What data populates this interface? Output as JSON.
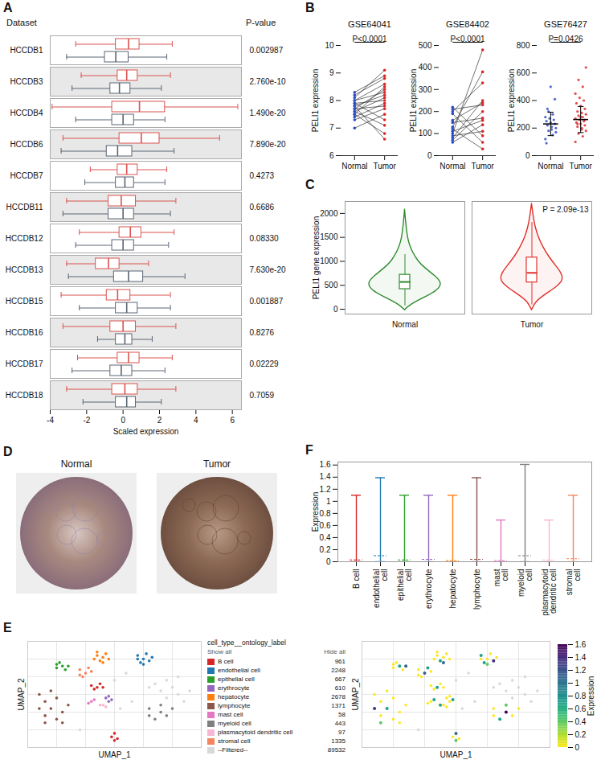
{
  "chart_data": [
    {
      "panel_label": "A",
      "type": "boxplot",
      "orientation": "horizontal",
      "column_titles": [
        "Dataset",
        "P-value"
      ],
      "categories": [
        "HCCDB1",
        "HCCDB3",
        "HCCDB4",
        "HCCDB6",
        "HCCDB7",
        "HCCDB11",
        "HCCDB12",
        "HCCDB13",
        "HCCDB15",
        "HCCDB16",
        "HCCDB17",
        "HCCDB18"
      ],
      "p_values": [
        "0.002987",
        "2.760e-10",
        "1.490e-20",
        "7.890e-20",
        "0.4273",
        "0.6686",
        "0.08330",
        "7.630e-20",
        "0.001887",
        "0.8276",
        "0.02229",
        "0.7059"
      ],
      "series": [
        {
          "color": "#d9534f",
          "values": [
            [
              -2.6,
              -0.4,
              0.3,
              0.9,
              2.7
            ],
            [
              -2.3,
              -0.3,
              0.2,
              0.8,
              2.6
            ],
            [
              -3.9,
              -0.6,
              0.9,
              2.3,
              6.3
            ],
            [
              -3.3,
              -0.2,
              1.0,
              2.0,
              5.3
            ],
            [
              -1.8,
              -0.3,
              0.2,
              0.8,
              2.4
            ],
            [
              -3.1,
              -0.8,
              -0.1,
              0.7,
              2.9
            ],
            [
              -2.4,
              -0.2,
              0.4,
              1.0,
              2.8
            ],
            [
              -3.1,
              -1.5,
              -0.8,
              -0.2,
              1.4
            ],
            [
              -3.4,
              -0.9,
              -0.3,
              0.4,
              2.6
            ],
            [
              -3.3,
              -0.7,
              0.0,
              0.7,
              2.9
            ],
            [
              -2.5,
              -0.3,
              0.3,
              0.9,
              2.7
            ],
            [
              -3.1,
              -0.6,
              0.1,
              0.8,
              2.9
            ]
          ]
        },
        {
          "color": "#5a6675",
          "values": [
            [
              -3.1,
              -1.0,
              -0.4,
              0.3,
              2.4
            ],
            [
              -2.8,
              -0.7,
              -0.2,
              0.4,
              2.1
            ],
            [
              -2.6,
              -0.6,
              0.0,
              0.6,
              2.3
            ],
            [
              -3.4,
              -0.9,
              -0.3,
              0.5,
              2.8
            ],
            [
              -2.1,
              -0.4,
              0.1,
              0.6,
              2.3
            ],
            [
              -3.3,
              -0.8,
              0.0,
              0.6,
              2.6
            ],
            [
              -2.6,
              -0.6,
              0.0,
              0.6,
              2.5
            ],
            [
              -3.0,
              -0.5,
              0.3,
              1.1,
              3.4
            ],
            [
              -2.4,
              -0.4,
              0.2,
              0.8,
              2.6
            ],
            [
              -1.4,
              -0.4,
              0.1,
              0.5,
              1.6
            ],
            [
              -2.8,
              -0.7,
              -0.1,
              0.5,
              2.3
            ],
            [
              -2.2,
              -0.4,
              0.2,
              0.7,
              2.1
            ]
          ]
        }
      ],
      "xlabel": "Scaled expression",
      "xlim": [
        -4,
        6.5
      ],
      "xticks": [
        -4,
        -2,
        0,
        2,
        4,
        6
      ]
    },
    {
      "panel_label": "B",
      "type": "paired",
      "title": "GSE64041",
      "categories": [
        "Normal",
        "Tumor"
      ],
      "colors": [
        "#2b4bc4",
        "#d62728"
      ],
      "ylabel": "PELI1 expression",
      "annotation": "P<0.0001",
      "ylim": [
        6,
        10
      ],
      "yticks": [
        6,
        7,
        8,
        9,
        10
      ],
      "pairs": [
        [
          7.8,
          8.2
        ],
        [
          7.6,
          7.1
        ],
        [
          8.0,
          8.6
        ],
        [
          7.4,
          7.9
        ],
        [
          7.9,
          7.3
        ],
        [
          7.7,
          8.4
        ],
        [
          8.1,
          9.1
        ],
        [
          7.5,
          6.8
        ],
        [
          7.3,
          7.7
        ],
        [
          7.9,
          8.0
        ],
        [
          8.2,
          8.8
        ],
        [
          7.6,
          8.1
        ],
        [
          7.0,
          7.5
        ],
        [
          7.8,
          6.6
        ],
        [
          8.0,
          8.3
        ],
        [
          7.5,
          8.5
        ],
        [
          7.7,
          7.8
        ],
        [
          8.3,
          8.9
        ]
      ]
    },
    {
      "type": "paired",
      "title": "GSE84402",
      "categories": [
        "Normal",
        "Tumor"
      ],
      "colors": [
        "#2b4bc4",
        "#d62728"
      ],
      "ylabel": "PELI1 expression",
      "annotation": "P<0.0001",
      "ylim": [
        0,
        500
      ],
      "yticks": [
        0,
        100,
        200,
        300,
        400,
        500
      ],
      "pairs": [
        [
          100,
          480
        ],
        [
          210,
          230
        ],
        [
          60,
          140
        ],
        [
          190,
          60
        ],
        [
          130,
          380
        ],
        [
          80,
          250
        ],
        [
          220,
          90
        ],
        [
          150,
          170
        ],
        [
          90,
          110
        ],
        [
          160,
          240
        ],
        [
          120,
          30
        ],
        [
          70,
          200
        ],
        [
          200,
          330
        ],
        [
          110,
          160
        ]
      ]
    },
    {
      "type": "dot",
      "title": "GSE76427",
      "categories": [
        "Normal",
        "Tumor"
      ],
      "ylabel": "PELI1 expression",
      "annotation": "P=0.0426",
      "ylim": [
        0,
        800
      ],
      "yticks": [
        0,
        200,
        400,
        600,
        800
      ],
      "groups": [
        {
          "color": "#3050c8",
          "mean": 230,
          "sd": 85,
          "values": [
            120,
            150,
            180,
            200,
            210,
            220,
            230,
            240,
            250,
            260,
            270,
            280,
            300,
            320,
            170,
            190,
            340,
            410,
            500,
            90
          ]
        },
        {
          "color": "#e03030",
          "mean": 262,
          "sd": 95,
          "values": [
            100,
            140,
            160,
            180,
            200,
            210,
            220,
            230,
            240,
            250,
            260,
            270,
            280,
            290,
            300,
            310,
            320,
            340,
            360,
            380,
            400,
            420,
            450,
            500,
            550,
            640,
            190,
            230,
            260,
            280
          ]
        }
      ]
    },
    {
      "panel_label": "C",
      "type": "violin",
      "categories": [
        "Normal",
        "Tumor"
      ],
      "colors": [
        "#2e8b2e",
        "#e0302a"
      ],
      "ylabel": "PELI1 gene expression",
      "annotation": "P = 2.09e-13",
      "ylim": [
        -100,
        2250
      ],
      "yticks": [
        0,
        500,
        1000,
        1500,
        2000
      ],
      "box": [
        [
          80,
          420,
          570,
          720,
          1150
        ],
        [
          100,
          560,
          760,
          1080,
          1820
        ]
      ],
      "violin": [
        {
          "y": [
            -20,
            100,
            250,
            400,
            550,
            700,
            850,
            1000,
            1200,
            1400,
            1600,
            1800,
            2080
          ],
          "width": [
            0,
            0.15,
            0.55,
            0.9,
            1.0,
            0.8,
            0.55,
            0.35,
            0.2,
            0.1,
            0.06,
            0.03,
            0
          ]
        },
        {
          "y": [
            -20,
            150,
            300,
            450,
            600,
            750,
            900,
            1100,
            1300,
            1500,
            1700,
            1900,
            2200
          ],
          "width": [
            0,
            0.1,
            0.35,
            0.65,
            0.85,
            0.8,
            0.65,
            0.45,
            0.3,
            0.18,
            0.1,
            0.05,
            0
          ]
        }
      ]
    },
    {
      "panel_label": "E",
      "type": "scatter",
      "xlabel": "UMAP_1",
      "ylabel": "UMAP_2",
      "xlim": [
        -15,
        15
      ],
      "ylim": [
        -15,
        15
      ],
      "xticks": [
        -10,
        -5,
        0,
        5,
        10
      ],
      "yticks": [
        -10,
        -5,
        0,
        5,
        10
      ],
      "grid": true,
      "tick_labels": false,
      "legend": "right",
      "legend_title": "cell_type__ontology_label",
      "legend_buttons": [
        "Show all",
        "Hide all"
      ],
      "series": [
        {
          "name": "B cell",
          "color": "#d62728",
          "count": 961,
          "x": [
            -4,
            -3,
            -2.5,
            -3.5,
            -2,
            -0.5,
            0,
            0.5,
            0
          ],
          "y": [
            2.5,
            2,
            3,
            1.5,
            2,
            -12,
            -11,
            -12.5,
            -13
          ],
          "expression": [
            0,
            0.7,
            0,
            0,
            0,
            0,
            1.1,
            0,
            0.4
          ]
        },
        {
          "name": "endothelial cell",
          "color": "#1f77b4",
          "count": 2248,
          "x": [
            4,
            5,
            6,
            5.5,
            4.5,
            6.5,
            5,
            4
          ],
          "y": [
            11,
            10,
            9.5,
            11.5,
            9,
            10.5,
            8.5,
            10
          ],
          "expression": [
            0.7,
            0,
            1.39,
            0,
            0.69,
            0,
            0.4,
            0
          ]
        },
        {
          "name": "epithelial cell",
          "color": "#2ca02c",
          "count": 667,
          "x": [
            -10,
            -9,
            -8.5,
            -9.5,
            -8,
            -10
          ],
          "y": [
            8.5,
            8,
            7,
            9,
            8,
            7.5
          ],
          "expression": [
            0,
            0.69,
            0,
            0,
            1.1,
            0
          ]
        },
        {
          "name": "erythrocyte",
          "color": "#9467bd",
          "count": 610,
          "x": [
            -1.5,
            -1,
            -0.5,
            -1
          ],
          "y": [
            -1,
            -0.5,
            -1.5,
            -2
          ],
          "expression": [
            0,
            0,
            0.69,
            0
          ]
        },
        {
          "name": "hepatocyte",
          "color": "#ff7f0e",
          "count": 2678,
          "x": [
            -3,
            -2,
            -2.5,
            -1.5,
            -3.5,
            -2,
            -1,
            -3
          ],
          "y": [
            11,
            10.5,
            9.5,
            11.5,
            10,
            9,
            10,
            12
          ],
          "expression": [
            0,
            0,
            0.69,
            0,
            0,
            1.1,
            0,
            0
          ]
        },
        {
          "name": "lymphocyte",
          "color": "#8c564b",
          "count": 1371,
          "x": [
            -13,
            -12,
            -11,
            -10,
            -12,
            -9,
            -13,
            -11,
            -10,
            -12,
            -8,
            -9
          ],
          "y": [
            0,
            -2,
            -4,
            -1,
            -6,
            -5,
            -4,
            1,
            -7,
            -8,
            -3,
            -8
          ],
          "expression": [
            0,
            0,
            0.69,
            0,
            0,
            0,
            1.39,
            0,
            0,
            0.4,
            0,
            0
          ]
        },
        {
          "name": "mast cell",
          "color": "#e377c2",
          "count": 58,
          "x": [
            -4,
            -3.5,
            -4.5
          ],
          "y": [
            -2,
            -1.5,
            -2.5
          ],
          "expression": [
            0,
            0.69,
            0
          ]
        },
        {
          "name": "myeloid cell",
          "color": "#7f7f7f",
          "count": 443,
          "x": [
            6,
            8,
            9,
            7,
            10,
            8,
            6
          ],
          "y": [
            -4,
            -5,
            -6,
            -7,
            -4,
            -3,
            -6
          ],
          "expression": [
            0,
            1.61,
            0,
            0.69,
            0,
            0.4,
            0
          ]
        },
        {
          "name": "plasmacytoid dendritic cell",
          "color": "#f7b6d2",
          "count": 97,
          "x": [
            -2,
            -1.5,
            -2.5
          ],
          "y": [
            -3,
            -3.5,
            -3
          ],
          "expression": [
            0,
            0,
            0.69
          ]
        },
        {
          "name": "stromal cell",
          "color": "#f4845f",
          "count": 1335,
          "x": [
            -6,
            -5,
            -4,
            -5.5,
            -4.5,
            -6
          ],
          "y": [
            7,
            6,
            6.5,
            5,
            7.5,
            5.5
          ],
          "expression": [
            0,
            1.1,
            0,
            0,
            0.69,
            0
          ]
        },
        {
          "name": "--Filtered--",
          "color": "#d9d9d9",
          "count": 89532,
          "x": [
            7,
            9,
            10,
            8,
            11,
            12,
            6,
            9,
            11,
            13,
            0,
            1,
            3,
            -6,
            2
          ],
          "y": [
            3,
            4,
            2,
            1,
            0,
            -2,
            2,
            -1,
            5,
            1,
            4,
            -4,
            -2,
            -10,
            6
          ]
        }
      ],
      "colorbar": {
        "label": "Expression",
        "range": [
          0,
          1.6
        ],
        "ticks": [
          0,
          0.2,
          0.4,
          0.6,
          0.8,
          1,
          1.2,
          1.4,
          1.6
        ]
      }
    },
    {
      "panel_label": "F",
      "type": "range",
      "categories": [
        "B cell",
        "endothelial cell",
        "epithelial cell",
        "erythrocyte",
        "hepatocyte",
        "lymphocyte",
        "mast cell",
        "myeloid cell",
        "plasmacytoid dendritic cell",
        "stromal cell"
      ],
      "colors": [
        "#d62728",
        "#1f77b4",
        "#2ca02c",
        "#9467bd",
        "#ff7f0e",
        "#8c564b",
        "#e377c2",
        "#7f7f7f",
        "#f7b6d2",
        "#f4845f"
      ],
      "min": [
        0,
        0,
        0,
        0,
        0,
        0,
        0,
        0,
        0,
        0
      ],
      "max": [
        1.1,
        1.39,
        1.1,
        1.1,
        1.1,
        1.39,
        0.69,
        1.61,
        0.69,
        1.1
      ],
      "mean": [
        0.03,
        0.1,
        0.03,
        0.04,
        0.02,
        0.04,
        0.02,
        0.1,
        0.03,
        0.05
      ],
      "ylabel": "Expression",
      "ylim": [
        0,
        1.65
      ],
      "yticks": [
        0,
        0.2,
        0.4,
        0.6,
        0.8,
        1,
        1.2,
        1.4,
        1.6
      ]
    }
  ],
  "images": {
    "panel_label": "D",
    "labels": [
      "Normal",
      "Tumor"
    ]
  }
}
